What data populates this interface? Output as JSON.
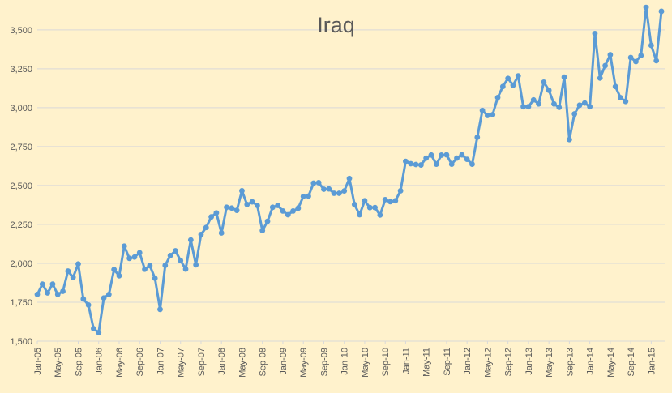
{
  "chart_data": {
    "type": "line",
    "title": "Iraq",
    "xlabel": "",
    "ylabel": "",
    "ylim": [
      1500,
      3650
    ],
    "yticks": [
      1500,
      1750,
      2000,
      2250,
      2500,
      2750,
      3000,
      3250,
      3500
    ],
    "ytick_labels": [
      "1,500",
      "1,750",
      "2,000",
      "2,250",
      "2,500",
      "2,750",
      "3,000",
      "3,250",
      "3,500"
    ],
    "xtick_labels": [
      "Jan-05",
      "May-05",
      "Sep-05",
      "Jan-06",
      "May-06",
      "Sep-06",
      "Jan-07",
      "May-07",
      "Sep-07",
      "Jan-08",
      "May-08",
      "Sep-08",
      "Jan-09",
      "May-09",
      "Sep-09",
      "Jan-10",
      "May-10",
      "Sep-10",
      "Jan-11",
      "May-11",
      "Sep-11",
      "Jan-12",
      "May-12",
      "Sep-12",
      "Jan-13",
      "May-13",
      "Sep-13",
      "Jan-14",
      "May-14",
      "Sep-14",
      "Jan-15"
    ],
    "grid": true,
    "colors": {
      "background": "#fff2cc",
      "line": "#5b9bd5",
      "grid": "#d9d9d9",
      "text": "#595959"
    },
    "series": [
      {
        "values": [
          1800,
          1866,
          1810,
          1866,
          1800,
          1820,
          1950,
          1910,
          1996,
          1771,
          1732,
          1580,
          1555,
          1777,
          1800,
          1960,
          1920,
          2110,
          2032,
          2040,
          2068,
          1962,
          1985,
          1904,
          1704,
          1987,
          2050,
          2080,
          2018,
          1963,
          2150,
          1990,
          2185,
          2230,
          2298,
          2324,
          2195,
          2360,
          2355,
          2340,
          2466,
          2378,
          2395,
          2372,
          2210,
          2270,
          2360,
          2372,
          2336,
          2312,
          2336,
          2354,
          2430,
          2432,
          2515,
          2518,
          2476,
          2478,
          2450,
          2450,
          2465,
          2545,
          2378,
          2312,
          2402,
          2358,
          2358,
          2310,
          2409,
          2396,
          2402,
          2466,
          2655,
          2640,
          2635,
          2632,
          2676,
          2696,
          2637,
          2695,
          2697,
          2637,
          2676,
          2697,
          2668,
          2637,
          2810,
          2982,
          2950,
          2955,
          3065,
          3136,
          3188,
          3144,
          3204,
          3006,
          3006,
          3050,
          3024,
          3164,
          3112,
          3024,
          3002,
          3196,
          2795,
          2960,
          3016,
          3030,
          3006,
          3476,
          3190,
          3270,
          3340,
          3136,
          3064,
          3040,
          3322,
          3296,
          3335,
          3644,
          3400,
          3302,
          3619
        ]
      }
    ]
  }
}
